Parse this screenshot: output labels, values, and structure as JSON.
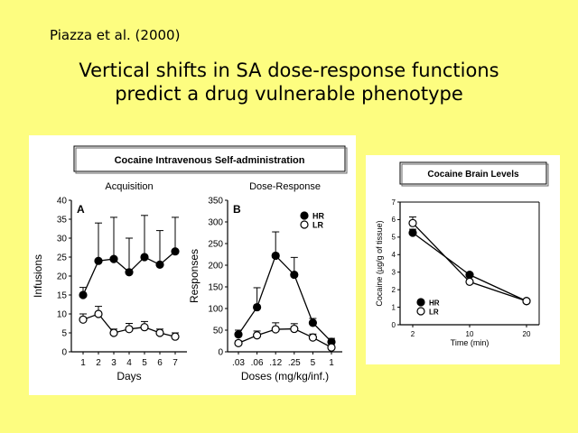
{
  "slide": {
    "citation": "Piazza et al. (2000)",
    "title_line1": "Vertical shifts in SA dose-response functions",
    "title_line2": "predict a drug vulnerable phenotype",
    "background": "#fdfd80"
  },
  "figure_left": {
    "banner": "Cocaine Intravenous Self-administration"
  },
  "chart_data": [
    {
      "type": "line",
      "panel": "A",
      "title": "Acquisition",
      "xlabel": "Days",
      "ylabel": "Infusions",
      "x": [
        1,
        2,
        3,
        4,
        5,
        6,
        7
      ],
      "xticks": [
        "1",
        "2",
        "3",
        "4",
        "5",
        "6",
        "7"
      ],
      "ylim": [
        0,
        40
      ],
      "yticks": [
        0,
        5,
        10,
        15,
        20,
        25,
        30,
        35,
        40
      ],
      "series": [
        {
          "name": "HR",
          "marker": "filled",
          "values": [
            15,
            24,
            24.5,
            21,
            25,
            23,
            26.5
          ],
          "error": [
            2,
            10,
            11,
            9,
            11,
            9,
            9
          ]
        },
        {
          "name": "LR",
          "marker": "open",
          "values": [
            8.5,
            10,
            5,
            6,
            6.5,
            5,
            4
          ],
          "error": [
            1.5,
            2,
            1,
            1.5,
            1.5,
            1,
            1
          ]
        }
      ]
    },
    {
      "type": "line",
      "panel": "B",
      "title": "Dose-Response",
      "xlabel": "Doses (mg/kg/inf.)",
      "ylabel": "Responses",
      "categories": [
        ".03",
        ".06",
        ".12",
        ".25",
        "5",
        "1"
      ],
      "ylim": [
        0,
        350
      ],
      "yticks": [
        0,
        50,
        100,
        150,
        200,
        250,
        300,
        350
      ],
      "legend_position": "top-right",
      "series": [
        {
          "name": "HR",
          "marker": "filled",
          "values": [
            40,
            103,
            222,
            178,
            67,
            23
          ],
          "error": [
            10,
            45,
            55,
            40,
            10,
            8
          ]
        },
        {
          "name": "LR",
          "marker": "open",
          "values": [
            20,
            38,
            52,
            53,
            33,
            10
          ],
          "error": [
            5,
            10,
            15,
            12,
            8,
            4
          ]
        }
      ]
    },
    {
      "type": "line",
      "title": "Cocaine Brain Levels",
      "xlabel": "Time (min)",
      "ylabel": "Cocaine (µg/g of tissue)",
      "categories": [
        "2",
        "10",
        "20"
      ],
      "ylim": [
        0,
        7
      ],
      "yticks": [
        0,
        1,
        2,
        3,
        4,
        5,
        6,
        7
      ],
      "legend_position": "bottom-left",
      "series": [
        {
          "name": "HR",
          "marker": "filled",
          "values": [
            5.25,
            2.85,
            1.35
          ],
          "error": [
            0.2,
            0,
            0
          ]
        },
        {
          "name": "LR",
          "marker": "open",
          "values": [
            5.8,
            2.45,
            1.35
          ],
          "error": [
            0.35,
            0,
            0
          ]
        }
      ]
    }
  ]
}
